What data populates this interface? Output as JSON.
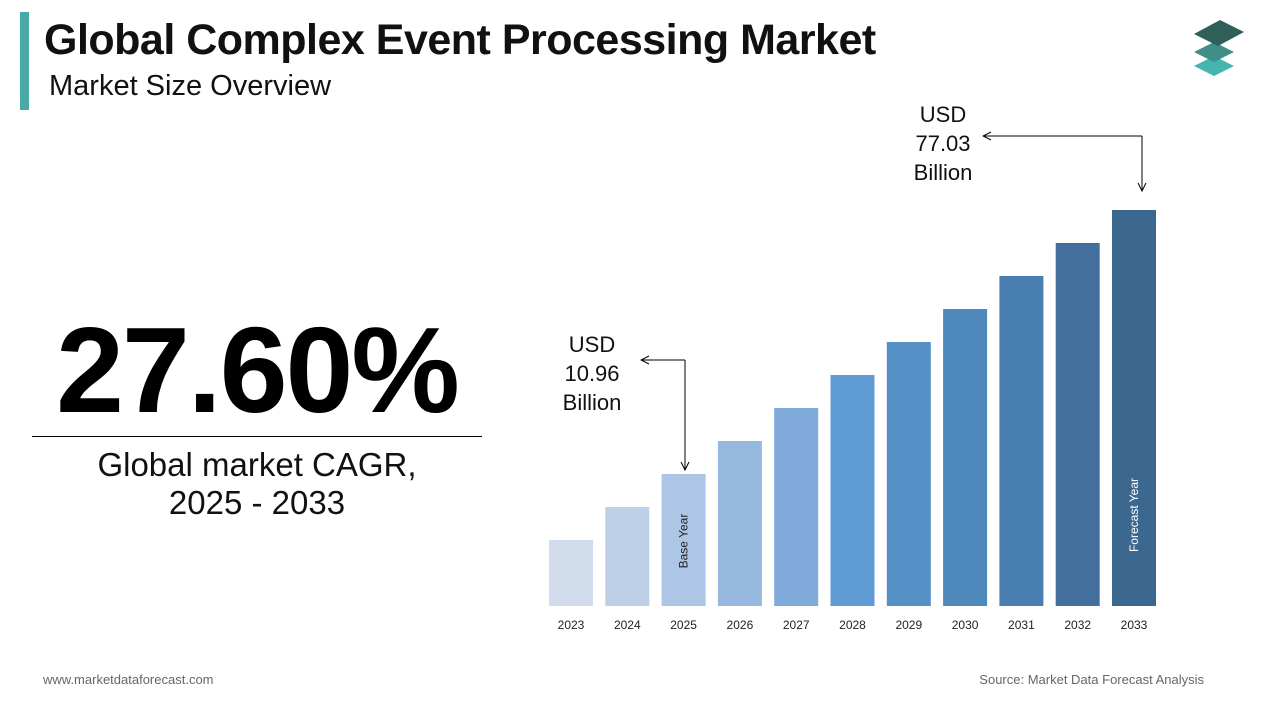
{
  "header": {
    "title": "Global Complex Event Processing Market",
    "subtitle": "Market Size Overview"
  },
  "brand": {
    "logo_icon": "stacked-layers-icon",
    "accent_color": "#4aa9a6"
  },
  "kpi": {
    "cagr_value": "27.60%",
    "cagr_label_line1": "Global market CAGR,",
    "cagr_label_line2": "2025 - 2033"
  },
  "chart_data": {
    "type": "bar",
    "title": "",
    "xlabel": "",
    "ylabel": "",
    "grid": false,
    "categories": [
      "2023",
      "2024",
      "2025",
      "2026",
      "2027",
      "2028",
      "2029",
      "2030",
      "2031",
      "2032",
      "2033"
    ],
    "values": [
      null,
      null,
      10.96,
      null,
      null,
      null,
      null,
      null,
      null,
      null,
      77.03
    ],
    "unit": "USD Billion",
    "colors": [
      "#d0dcec",
      "#bed0e8",
      "#aec6e5",
      "#97b8de",
      "#7faad9",
      "#5e9ad4",
      "#5590c6",
      "#4f88bb",
      "#487fb0",
      "#426f9c",
      "#3c678f"
    ],
    "bar_labels": {
      "2025": "Base Year",
      "2033": "Forecast Year"
    },
    "annotations": [
      {
        "year": "2025",
        "line1": "USD",
        "line2": "10.96",
        "line3": "Billion"
      },
      {
        "year": "2033",
        "line1": "USD",
        "line2": "77.03",
        "line3": "Billion"
      }
    ]
  },
  "footer": {
    "website": "www.marketdataforecast.com",
    "source": "Source: Market Data Forecast Analysis"
  }
}
